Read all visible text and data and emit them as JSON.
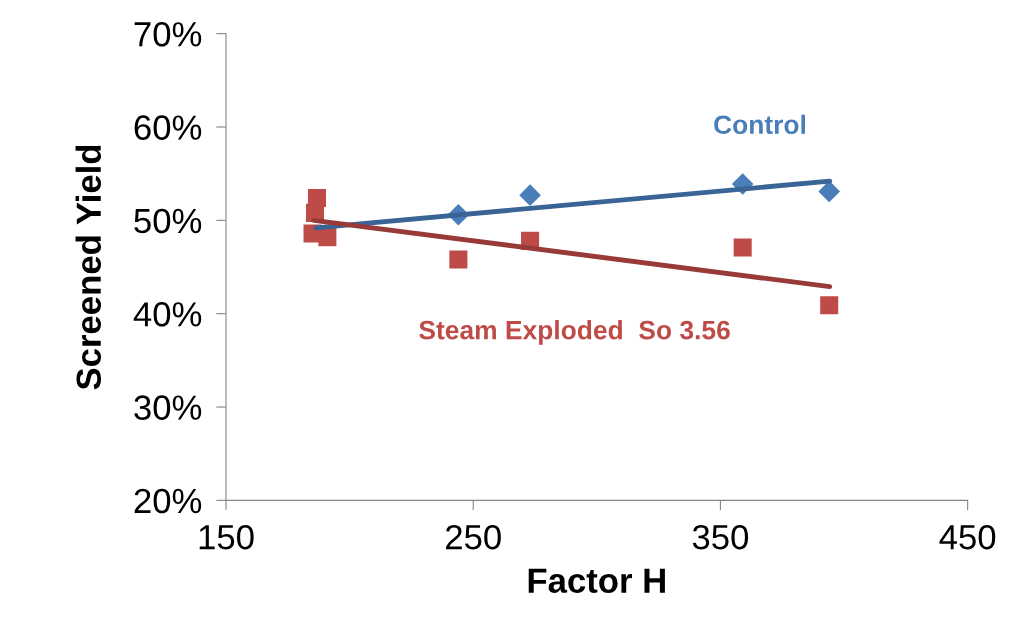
{
  "chart_data": {
    "type": "scatter",
    "xlabel": "Factor H",
    "ylabel": "Screened Yield",
    "xlim": [
      150,
      450
    ],
    "xticks": [
      150,
      250,
      350,
      450
    ],
    "ylim": [
      20,
      70
    ],
    "yticks": [
      {
        "value": 20,
        "label": "20%"
      },
      {
        "value": 30,
        "label": "30%"
      },
      {
        "value": 40,
        "label": "40%"
      },
      {
        "value": 50,
        "label": "50%"
      },
      {
        "value": 60,
        "label": "60%"
      },
      {
        "value": 70,
        "label": "70%"
      }
    ],
    "grid": false,
    "legend": false,
    "series": [
      {
        "name": "Control",
        "color": "#4a7ebb",
        "marker": "diamond",
        "x": [
          244,
          273,
          359,
          394
        ],
        "values": [
          50.6,
          52.7,
          53.9,
          53.1
        ]
      },
      {
        "name": "Steam Exploded  So 3.56",
        "color": "#be4b48",
        "marker": "square",
        "x": [
          186.8,
          186,
          185,
          191,
          244,
          273,
          359,
          394
        ],
        "values": [
          52.4,
          50.8,
          48.6,
          48.2,
          45.8,
          47.8,
          47.1,
          40.9
        ]
      },
      {
        "type": "line",
        "color": "#3a6396",
        "marker": "none",
        "x": [
          186.4,
          394.2
        ],
        "values": [
          49.2,
          54.2
        ]
      },
      {
        "type": "line",
        "color": "#983a37",
        "marker": "none",
        "x": [
          185.5,
          394.2
        ],
        "values": [
          50.0,
          42.9
        ]
      }
    ]
  }
}
